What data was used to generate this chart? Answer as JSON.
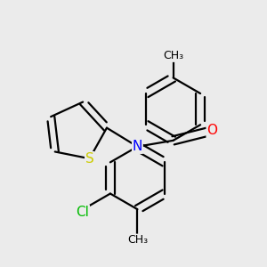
{
  "background_color": "#ebebeb",
  "bond_color": "#000000",
  "bond_width": 1.6,
  "atom_colors": {
    "N": "#0000ff",
    "O": "#ff0000",
    "S": "#cccc00",
    "Cl": "#00bb00",
    "C": "#000000"
  },
  "font_size_atom": 11,
  "font_size_ch3": 9,
  "figsize": [
    3.0,
    3.0
  ],
  "dpi": 100
}
